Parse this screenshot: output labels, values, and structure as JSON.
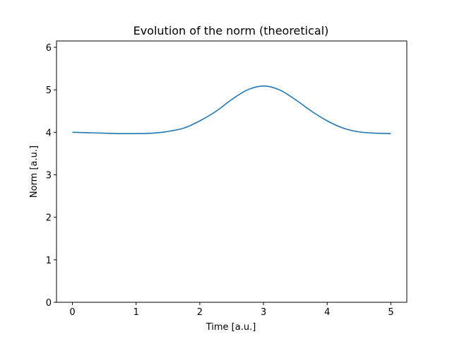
{
  "chart_data": {
    "type": "line",
    "title": "Evolution of the norm (theoretical)",
    "xlabel": "Time [a.u.]",
    "ylabel": "Norm [a.u.]",
    "xlim": [
      -0.25,
      5.25
    ],
    "ylim": [
      0,
      6.15
    ],
    "xticks": [
      "0",
      "1",
      "2",
      "3",
      "4",
      "5"
    ],
    "yticks": [
      "0",
      "1",
      "2",
      "3",
      "4",
      "5",
      "6"
    ],
    "grid": false,
    "series": [
      {
        "color": "#1f77b4",
        "x": [
          0,
          0.25,
          0.5,
          0.75,
          1.0,
          1.25,
          1.5,
          1.75,
          2.0,
          2.25,
          2.5,
          2.75,
          3.0,
          3.25,
          3.5,
          3.75,
          4.0,
          4.25,
          4.5,
          4.75,
          5.0
        ],
        "y": [
          4.0,
          3.99,
          3.98,
          3.97,
          3.97,
          3.98,
          4.02,
          4.1,
          4.27,
          4.49,
          4.77,
          5.0,
          5.09,
          5.0,
          4.77,
          4.5,
          4.27,
          4.1,
          4.01,
          3.98,
          3.97
        ]
      }
    ]
  }
}
